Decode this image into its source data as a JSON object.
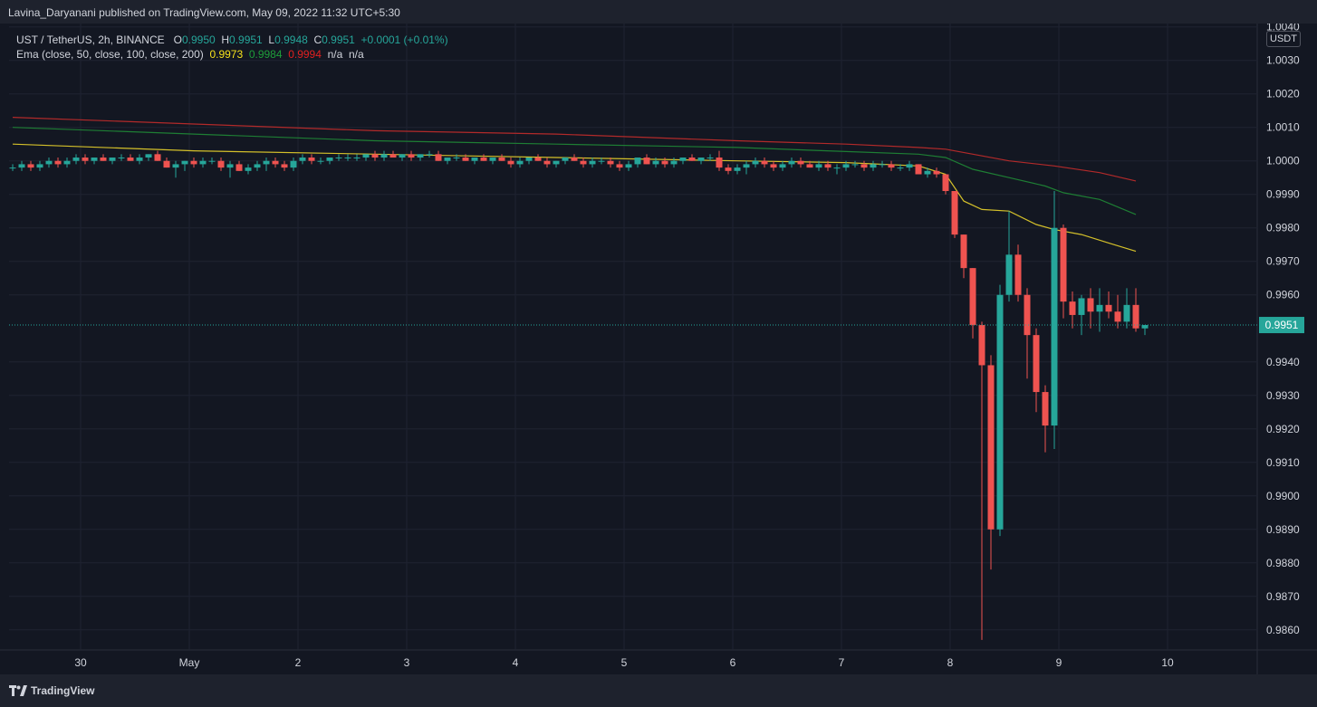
{
  "header": {
    "publisher_text": "Lavina_Daryanani published on TradingView.com, May 09, 2022 11:32 UTC+5:30"
  },
  "legend": {
    "symbol": "UST / TetherUS, 2h, BINANCE",
    "o_label": "O",
    "o_value": "0.9950",
    "h_label": "H",
    "h_value": "0.9951",
    "l_label": "L",
    "l_value": "0.9948",
    "c_label": "C",
    "c_value": "0.9951",
    "change": "+0.0001 (+0.01%)",
    "ema_label": "Ema (close, 50, close, 100, close, 200)",
    "ema_50": "0.9973",
    "ema_100": "0.9984",
    "ema_200": "0.9994",
    "na1": "n/a",
    "na2": "n/a"
  },
  "footer": {
    "brand": "TradingView"
  },
  "colors": {
    "up": "#26a69a",
    "down": "#ef5350",
    "ema50": "#d4c02a",
    "ema100": "#1e7e34",
    "ema200": "#b22a2a",
    "last_price_bg": "#26a69a"
  },
  "chart_data": {
    "type": "candlestick",
    "y_unit": "USDT",
    "ylim": [
      0.9854,
      1.0041
    ],
    "y_ticks": [
      "1.0040",
      "1.0030",
      "1.0020",
      "1.0010",
      "1.0000",
      "0.9990",
      "0.9980",
      "0.9970",
      "0.9960",
      "0.9940",
      "0.9930",
      "0.9920",
      "0.9910",
      "0.9900",
      "0.9890",
      "0.9880",
      "0.9870",
      "0.9860"
    ],
    "last_price": "0.9951",
    "x_ticks": [
      {
        "label": "30",
        "pos": 7.5
      },
      {
        "label": "May",
        "pos": 19.5
      },
      {
        "label": "2",
        "pos": 31.5
      },
      {
        "label": "3",
        "pos": 43.5
      },
      {
        "label": "4",
        "pos": 55.5
      },
      {
        "label": "5",
        "pos": 67.5
      },
      {
        "label": "6",
        "pos": 79.5
      },
      {
        "label": "7",
        "pos": 91.5
      },
      {
        "label": "8",
        "pos": 103.5
      },
      {
        "label": "9",
        "pos": 115.5
      },
      {
        "label": "10",
        "pos": 127.5
      }
    ],
    "candles": [
      [
        0.9998,
        0.9999,
        0.9997,
        0.9998
      ],
      [
        0.9998,
        1.0,
        0.9997,
        0.9999
      ],
      [
        0.9999,
        1.0,
        0.9997,
        0.9998
      ],
      [
        0.9998,
        1.0,
        0.9997,
        0.9999
      ],
      [
        0.9999,
        1.0001,
        0.9998,
        1.0
      ],
      [
        1.0,
        1.0001,
        0.9998,
        0.9999
      ],
      [
        0.9999,
        1.0001,
        0.9998,
        1.0
      ],
      [
        1.0,
        1.0002,
        0.9999,
        1.0001
      ],
      [
        1.0001,
        1.0002,
        0.9999,
        1.0
      ],
      [
        1.0,
        1.0001,
        0.9999,
        1.0001
      ],
      [
        1.0001,
        1.0002,
        1.0,
        1.0
      ],
      [
        1.0,
        1.0001,
        0.9999,
        1.0001
      ],
      [
        1.0001,
        1.0002,
        1.0,
        1.0001
      ],
      [
        1.0001,
        1.0002,
        1.0,
        1.0
      ],
      [
        1.0,
        1.0002,
        0.9999,
        1.0001
      ],
      [
        1.0001,
        1.0002,
        1.0,
        1.0002
      ],
      [
        1.0002,
        1.0003,
        1.0,
        1.0
      ],
      [
        1.0,
        1.0001,
        0.9998,
        0.9998
      ],
      [
        0.9998,
        1.0,
        0.9995,
        0.9999
      ],
      [
        0.9999,
        1.0,
        0.9997,
        1.0
      ],
      [
        1.0,
        1.0001,
        0.9998,
        0.9999
      ],
      [
        0.9999,
        1.0001,
        0.9998,
        1.0
      ],
      [
        1.0,
        1.0001,
        0.9999,
        1.0
      ],
      [
        1.0,
        1.0001,
        0.9997,
        0.9998
      ],
      [
        0.9998,
        1.0,
        0.9995,
        0.9999
      ],
      [
        0.9999,
        1.0,
        0.9997,
        0.9997
      ],
      [
        0.9997,
        0.9999,
        0.9996,
        0.9998
      ],
      [
        0.9998,
        1.0,
        0.9997,
        0.9999
      ],
      [
        0.9999,
        1.0001,
        0.9997,
        1.0
      ],
      [
        1.0,
        1.0001,
        0.9998,
        0.9999
      ],
      [
        0.9999,
        1.0,
        0.9997,
        0.9998
      ],
      [
        0.9998,
        1.0001,
        0.9997,
        1.0
      ],
      [
        1.0,
        1.0002,
        0.9999,
        1.0001
      ],
      [
        1.0001,
        1.0002,
        0.9999,
        1.0
      ],
      [
        1.0,
        1.0001,
        0.9999,
        1.0
      ],
      [
        1.0,
        1.0001,
        0.9999,
        1.0001
      ],
      [
        1.0001,
        1.0002,
        1.0,
        1.0001
      ],
      [
        1.0001,
        1.0002,
        1.0,
        1.0001
      ],
      [
        1.0001,
        1.0002,
        1.0,
        1.0001
      ],
      [
        1.0001,
        1.0002,
        1.0,
        1.0002
      ],
      [
        1.0002,
        1.0003,
        1.0,
        1.0001
      ],
      [
        1.0001,
        1.0003,
        1.0,
        1.0002
      ],
      [
        1.0002,
        1.0003,
        1.0001,
        1.0001
      ],
      [
        1.0001,
        1.0002,
        1.0,
        1.0002
      ],
      [
        1.0002,
        1.0003,
        1.0,
        1.0001
      ],
      [
        1.0001,
        1.0002,
        1.0,
        1.0002
      ],
      [
        1.0002,
        1.0003,
        1.0001,
        1.0002
      ],
      [
        1.0002,
        1.0003,
        1.0,
        1.0
      ],
      [
        1.0,
        1.0001,
        0.9999,
        1.0001
      ],
      [
        1.0001,
        1.0002,
        1.0,
        1.0001
      ],
      [
        1.0001,
        1.0002,
        1.0,
        1.0
      ],
      [
        1.0,
        1.0001,
        0.9999,
        1.0001
      ],
      [
        1.0001,
        1.0002,
        1.0,
        1.0
      ],
      [
        1.0,
        1.0001,
        0.9999,
        1.0001
      ],
      [
        1.0001,
        1.0002,
        1.0,
        1.0
      ],
      [
        1.0,
        1.0001,
        0.9998,
        0.9999
      ],
      [
        0.9999,
        1.0001,
        0.9998,
        1.0
      ],
      [
        1.0,
        1.0001,
        0.9999,
        1.0001
      ],
      [
        1.0001,
        1.0002,
        1.0,
        1.0
      ],
      [
        1.0,
        1.0001,
        0.9998,
        0.9999
      ],
      [
        0.9999,
        1.0,
        0.9998,
        1.0
      ],
      [
        1.0,
        1.0001,
        0.9999,
        1.0001
      ],
      [
        1.0001,
        1.0002,
        1.0,
        1.0
      ],
      [
        1.0,
        1.0001,
        0.9998,
        0.9999
      ],
      [
        0.9999,
        1.0001,
        0.9998,
        1.0
      ],
      [
        1.0,
        1.0001,
        0.9999,
        1.0
      ],
      [
        1.0,
        1.0001,
        0.9998,
        0.9999
      ],
      [
        0.9999,
        1.0,
        0.9997,
        0.9998
      ],
      [
        0.9998,
        1.0,
        0.9997,
        0.9999
      ],
      [
        0.9999,
        1.0001,
        0.9998,
        1.0001
      ],
      [
        1.0001,
        1.0002,
        0.9999,
        0.9999
      ],
      [
        0.9999,
        1.0001,
        0.9998,
        1.0
      ],
      [
        1.0,
        1.0001,
        0.9998,
        0.9999
      ],
      [
        0.9999,
        1.0001,
        0.9998,
        1.0
      ],
      [
        1.0,
        1.0001,
        0.9999,
        1.0001
      ],
      [
        1.0001,
        1.0002,
        1.0,
        1.0
      ],
      [
        1.0,
        1.0001,
        0.9999,
        1.0001
      ],
      [
        1.0001,
        1.0002,
        1.0,
        1.0001
      ],
      [
        1.0001,
        1.0003,
        0.9997,
        0.9998
      ],
      [
        0.9998,
        0.9999,
        0.9996,
        0.9997
      ],
      [
        0.9997,
        0.9999,
        0.9996,
        0.9998
      ],
      [
        0.9998,
        1.0,
        0.9996,
        0.9999
      ],
      [
        0.9999,
        1.0001,
        0.9998,
        1.0
      ],
      [
        1.0,
        1.0001,
        0.9998,
        0.9999
      ],
      [
        0.9999,
        1.0,
        0.9997,
        0.9998
      ],
      [
        0.9998,
        1.0,
        0.9997,
        0.9999
      ],
      [
        0.9999,
        1.0001,
        0.9998,
        1.0
      ],
      [
        1.0,
        1.0001,
        0.9998,
        0.9999
      ],
      [
        0.9999,
        1.0,
        0.9998,
        0.9998
      ],
      [
        0.9998,
        1.0,
        0.9997,
        0.9999
      ],
      [
        0.9999,
        1.0,
        0.9997,
        0.9998
      ],
      [
        0.9998,
        0.9999,
        0.9996,
        0.9998
      ],
      [
        0.9998,
        1.0,
        0.9997,
        0.9999
      ],
      [
        0.9999,
        1.0,
        0.9998,
        0.9999
      ],
      [
        0.9999,
        1.0,
        0.9997,
        0.9998
      ],
      [
        0.9998,
        1.0,
        0.9997,
        0.9999
      ],
      [
        0.9999,
        1.0,
        0.9998,
        0.9999
      ],
      [
        0.9999,
        1.0,
        0.9997,
        0.9998
      ],
      [
        0.9998,
        0.9999,
        0.9997,
        0.9998
      ],
      [
        0.9998,
        1.0,
        0.9997,
        0.9999
      ],
      [
        0.9999,
        0.9999,
        0.9996,
        0.9996
      ],
      [
        0.9996,
        0.9998,
        0.9995,
        0.9997
      ],
      [
        0.9997,
        0.9998,
        0.9995,
        0.9996
      ],
      [
        0.9996,
        0.9996,
        0.999,
        0.9991
      ],
      [
        0.9991,
        0.9991,
        0.9977,
        0.9978
      ],
      [
        0.9978,
        0.9978,
        0.9965,
        0.9968
      ],
      [
        0.9968,
        0.9968,
        0.9947,
        0.9951
      ],
      [
        0.9951,
        0.9952,
        0.9857,
        0.9939
      ],
      [
        0.9939,
        0.9942,
        0.9878,
        0.989
      ],
      [
        0.989,
        0.9963,
        0.9888,
        0.996
      ],
      [
        0.996,
        0.9985,
        0.9958,
        0.9972
      ],
      [
        0.9972,
        0.9975,
        0.9958,
        0.996
      ],
      [
        0.996,
        0.9962,
        0.9935,
        0.9948
      ],
      [
        0.9948,
        0.995,
        0.9925,
        0.9931
      ],
      [
        0.9931,
        0.9933,
        0.9913,
        0.9921
      ],
      [
        0.9921,
        0.9991,
        0.9914,
        0.998
      ],
      [
        0.998,
        0.9981,
        0.9953,
        0.9958
      ],
      [
        0.9958,
        0.9961,
        0.995,
        0.9954
      ],
      [
        0.9954,
        0.996,
        0.9948,
        0.9959
      ],
      [
        0.9959,
        0.9962,
        0.995,
        0.9955
      ],
      [
        0.9955,
        0.9962,
        0.9949,
        0.9957
      ],
      [
        0.9957,
        0.9961,
        0.9953,
        0.9955
      ],
      [
        0.9955,
        0.996,
        0.995,
        0.9952
      ],
      [
        0.9952,
        0.9962,
        0.995,
        0.9957
      ],
      [
        0.9957,
        0.9962,
        0.9949,
        0.995
      ],
      [
        0.995,
        0.9951,
        0.9948,
        0.9951
      ]
    ],
    "ema": [
      {
        "name": "ema50",
        "points": [
          [
            0,
            1.0005
          ],
          [
            20,
            1.0003
          ],
          [
            40,
            1.0002
          ],
          [
            60,
            1.0001
          ],
          [
            80,
            1.0
          ],
          [
            92,
            0.99995
          ],
          [
            100,
            0.99985
          ],
          [
            103,
            0.9996
          ],
          [
            105,
            0.9988
          ],
          [
            107,
            0.99855
          ],
          [
            110,
            0.9985
          ],
          [
            113,
            0.9981
          ],
          [
            115,
            0.99795
          ],
          [
            118,
            0.9978
          ],
          [
            121,
            0.99755
          ],
          [
            124,
            0.9973
          ]
        ]
      },
      {
        "name": "ema100",
        "points": [
          [
            0,
            1.001
          ],
          [
            20,
            1.0008
          ],
          [
            40,
            1.0006
          ],
          [
            60,
            1.0005
          ],
          [
            80,
            1.0004
          ],
          [
            92,
            1.00028
          ],
          [
            100,
            1.0002
          ],
          [
            103,
            1.0001
          ],
          [
            106,
            0.99975
          ],
          [
            110,
            0.9995
          ],
          [
            114,
            0.99925
          ],
          [
            116,
            0.99905
          ],
          [
            120,
            0.99885
          ],
          [
            124,
            0.9984
          ]
        ]
      },
      {
        "name": "ema200",
        "points": [
          [
            0,
            1.0013
          ],
          [
            20,
            1.0011
          ],
          [
            40,
            1.0009
          ],
          [
            60,
            1.0008
          ],
          [
            80,
            1.0006
          ],
          [
            92,
            1.0005
          ],
          [
            100,
            1.0004
          ],
          [
            103,
            1.00035
          ],
          [
            106,
            1.0002
          ],
          [
            110,
            1.0
          ],
          [
            115,
            0.99985
          ],
          [
            120,
            0.99965
          ],
          [
            124,
            0.9994
          ]
        ]
      }
    ]
  }
}
